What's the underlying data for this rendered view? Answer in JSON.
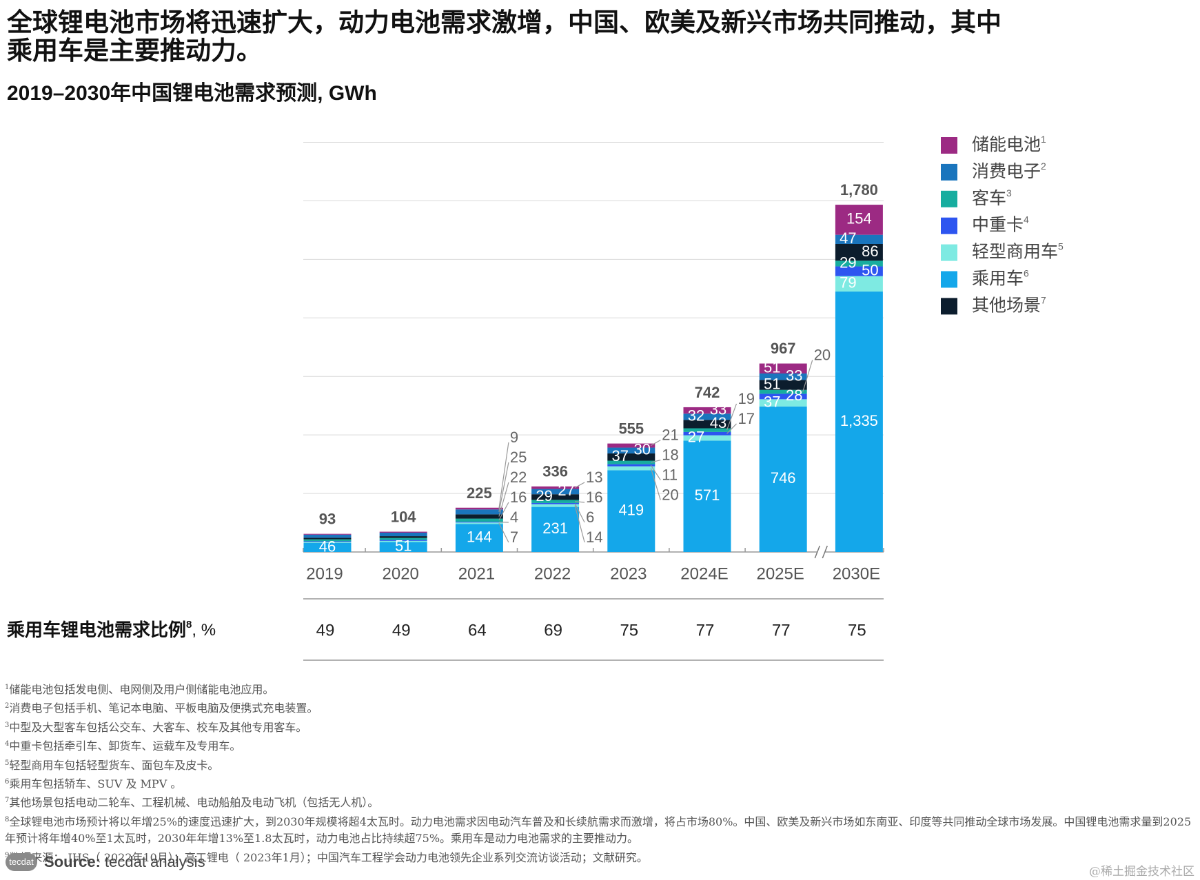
{
  "headline": {
    "lines": [
      "全球锂电池市场将迅速扩大，动力电池需求激增，中国、欧美及新兴市场共同推动，其中",
      "乘用车是主要推动力。"
    ]
  },
  "chart_data": {
    "type": "stacked_bar",
    "subtitle": "2019–2030年中国锂电池需求预测, GWh",
    "categories": [
      "2019",
      "2020",
      "2021",
      "2022",
      "2023",
      "2024E",
      "2025E",
      "2030E"
    ],
    "series": [
      {
        "name": "储能电池",
        "note": "1",
        "color": "#9c2a83",
        "values": [
          4,
          5,
          9,
          13,
          21,
          33,
          51,
          154
        ],
        "value_labels": [
          null,
          null,
          "9",
          "13",
          "21",
          "33",
          "51",
          "154"
        ]
      },
      {
        "name": "消费电子",
        "note": "2",
        "color": "#1a75bd",
        "values": [
          16,
          18,
          25,
          27,
          30,
          32,
          33,
          47
        ],
        "value_labels": [
          null,
          null,
          "25",
          "27",
          "30",
          "32",
          "33",
          "47"
        ]
      },
      {
        "name": "客车",
        "note": "3",
        "color": "#17ad9f",
        "values": [
          10,
          10,
          16,
          16,
          18,
          19,
          20,
          29
        ],
        "value_labels": [
          null,
          null,
          "16",
          "16",
          "18",
          "19",
          "20",
          "29"
        ]
      },
      {
        "name": "中重卡",
        "note": "4",
        "color": "#2d55f0",
        "values": [
          4,
          5,
          4,
          6,
          11,
          17,
          28,
          50
        ],
        "value_labels": [
          null,
          null,
          "4",
          "6",
          "11",
          "17",
          "28",
          "50"
        ]
      },
      {
        "name": "轻型商用车",
        "note": "5",
        "color": "#7eeae2",
        "values": [
          5,
          6,
          7,
          14,
          20,
          27,
          37,
          79
        ],
        "value_labels": [
          null,
          null,
          "7",
          "14",
          "20",
          "27",
          "37",
          "79"
        ]
      },
      {
        "name": "乘用车",
        "note": "6",
        "color": "#14a7ea",
        "values": [
          46,
          51,
          144,
          231,
          419,
          571,
          746,
          1335
        ],
        "value_labels": [
          "46",
          "51",
          "144",
          "231",
          "419",
          "571",
          "746",
          "1,335"
        ]
      },
      {
        "name": "其他场景",
        "note": "7",
        "color": "#0c1d2d",
        "values": [
          8,
          9,
          22,
          29,
          37,
          43,
          51,
          86
        ],
        "value_labels": [
          null,
          null,
          "22",
          "29",
          "37",
          "43",
          "51",
          "86"
        ]
      }
    ],
    "stack_order": [
      5,
      4,
      3,
      2,
      6,
      1,
      0
    ],
    "totals": {
      "values": [
        93,
        104,
        225,
        336,
        555,
        742,
        967,
        1780
      ],
      "value_labels": [
        "93",
        "104",
        "225",
        "336",
        "555",
        "742",
        "967",
        "1,780"
      ]
    },
    "ylim": [
      0,
      2100
    ],
    "yticks": [
      300,
      600,
      900,
      1200,
      1500,
      1800,
      2100
    ],
    "show_ytick_labels": false,
    "grid": true,
    "axis_break": true,
    "legend_position": "right",
    "share": {
      "label": "乘用车锂电池需求比例",
      "note": "8",
      "unit": ", %",
      "values": [
        49,
        49,
        64,
        69,
        75,
        77,
        77,
        75
      ]
    }
  },
  "footnotes": [
    {
      "mark": "1",
      "text": "储能电池包括发电侧、电网侧及用户侧储能电池应用。"
    },
    {
      "mark": "2",
      "text": "消费电子包括手机、笔记本电脑、平板电脑及便携式充电装置。"
    },
    {
      "mark": "3",
      "text": "中型及大型客车包括公交车、大客车、校车及其他专用客车。"
    },
    {
      "mark": "4",
      "text": "中重卡包括牵引车、卸货车、运载车及专用车。"
    },
    {
      "mark": "5",
      "text": "轻型商用车包括轻型货车、面包车及皮卡。"
    },
    {
      "mark": "6",
      "text": "乘用车包括轿车、SUV 及 MPV 。"
    },
    {
      "mark": "7",
      "text": "其他场景包括电动二轮车、工程机械、电动船舶及电动飞机（包括无人机）。"
    },
    {
      "mark": "8",
      "text": "全球锂电池市场预计将以年增25%的速度迅速扩大，到2030年规模将超4太瓦时。动力电池需求因电动汽车普及和长续航需求而激增，将占市场80%。中国、欧美及新兴市场如东南亚、印度等共同推动全球市场发展。中国锂电池需求量到2025年预计将年增40%至1太瓦时，2030年年增13%至1.8太瓦时，动力电池占比持续超75%。乘用车是动力电池需求的主要推动力。"
    },
    {
      "mark": "9",
      "text": "数据来源： IHS（ 2022年10月）；高工锂电（ 2023年1月）；中国汽车工程学会动力电池领先企业系列交流访谈活动；文献研究。"
    }
  ],
  "source": {
    "logo": "tecdat",
    "label": "Source:",
    "text": "tecdat analysis"
  },
  "watermark": "@稀土掘金技术社区"
}
